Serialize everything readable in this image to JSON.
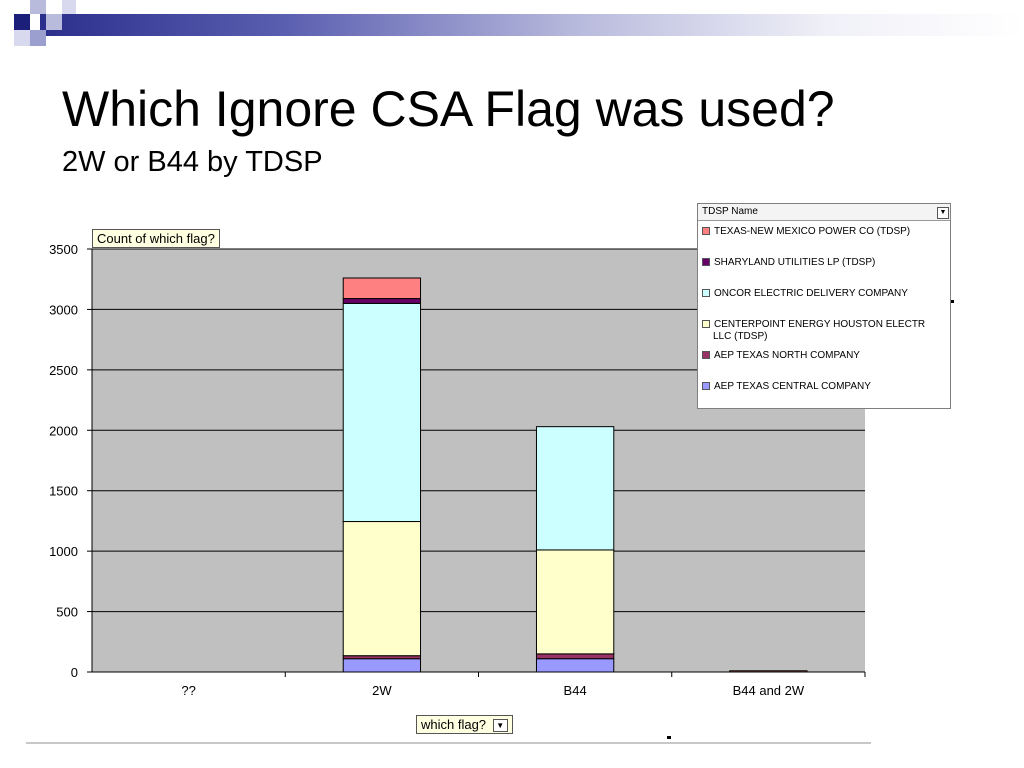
{
  "slide": {
    "title": "Which Ignore CSA Flag was used?",
    "subtitle": "2W or B44 by TDSP"
  },
  "colors": {
    "plot_background": "#c0c0c0",
    "decor_dark": "#2b2f8c",
    "decor_light": "#9b9fd0"
  },
  "pivot": {
    "data_field_label": "Count of which flag?",
    "row_field_label": "which flag?",
    "legend_field_label": "TDSP Name",
    "dropdown_icon": "chevron-down-icon"
  },
  "chart_data": {
    "type": "bar",
    "stacked": true,
    "categories": [
      "??",
      "2W",
      "B44",
      "B44 and 2W"
    ],
    "ylim": [
      0,
      3500
    ],
    "yticks": [
      0,
      500,
      1000,
      1500,
      2000,
      2500,
      3000,
      3500
    ],
    "grid": true,
    "legend_position": "top-right",
    "series": [
      {
        "name": "AEP TEXAS CENTRAL COMPANY",
        "color": "#9999ff",
        "values": [
          0,
          110,
          110,
          0
        ]
      },
      {
        "name": "AEP TEXAS NORTH COMPANY",
        "color": "#993366",
        "values": [
          0,
          25,
          40,
          0
        ]
      },
      {
        "name": "CENTERPOINT ENERGY HOUSTON ELECTR LLC (TDSP)",
        "color": "#ffffcc",
        "values": [
          0,
          1110,
          860,
          0
        ]
      },
      {
        "name": "ONCOR ELECTRIC DELIVERY COMPANY",
        "color": "#ccffff",
        "values": [
          0,
          1805,
          1020,
          0
        ]
      },
      {
        "name": "SHARYLAND UTILITIES LP (TDSP)",
        "color": "#660066",
        "values": [
          0,
          40,
          0,
          0
        ]
      },
      {
        "name": "TEXAS-NEW MEXICO POWER CO (TDSP)",
        "color": "#ff8080",
        "values": [
          0,
          170,
          0,
          10
        ]
      }
    ],
    "legend": [
      {
        "label": "TEXAS-NEW MEXICO POWER CO (TDSP)",
        "color": "#ff8080"
      },
      {
        "label": "SHARYLAND UTILITIES LP (TDSP)",
        "color": "#660066"
      },
      {
        "label": "ONCOR ELECTRIC DELIVERY COMPANY",
        "color": "#ccffff"
      },
      {
        "label": "CENTERPOINT ENERGY HOUSTON ELECTR",
        "label_line2": "LLC (TDSP)",
        "color": "#ffffcc"
      },
      {
        "label": "AEP TEXAS NORTH COMPANY",
        "color": "#993366"
      },
      {
        "label": "AEP TEXAS CENTRAL COMPANY",
        "color": "#9999ff"
      }
    ]
  }
}
